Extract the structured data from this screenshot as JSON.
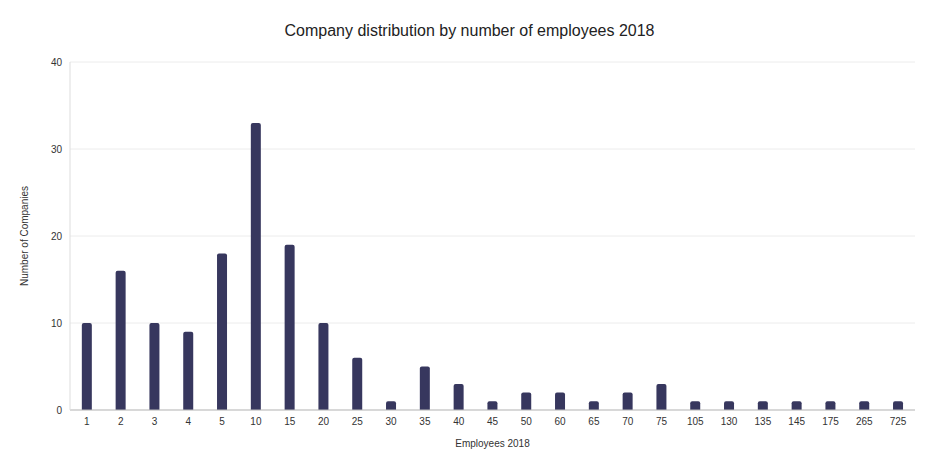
{
  "chart_data": {
    "type": "bar",
    "title": "Company distribution by number of employees 2018",
    "x_label": "Employees 2018",
    "y_label": "Number of Companies",
    "categories": [
      "1",
      "2",
      "3",
      "4",
      "5",
      "10",
      "15",
      "20",
      "25",
      "30",
      "35",
      "40",
      "45",
      "50",
      "60",
      "65",
      "70",
      "75",
      "105",
      "130",
      "135",
      "145",
      "175",
      "265",
      "725"
    ],
    "values": [
      10,
      16,
      10,
      9,
      18,
      33,
      19,
      10,
      6,
      1,
      5,
      3,
      1,
      2,
      2,
      1,
      2,
      3,
      1,
      1,
      1,
      1,
      1,
      1,
      1
    ],
    "color": "#37375e",
    "ylim": [
      0,
      40
    ],
    "yticks": [
      0,
      10,
      20,
      30,
      40
    ],
    "grid": true
  }
}
